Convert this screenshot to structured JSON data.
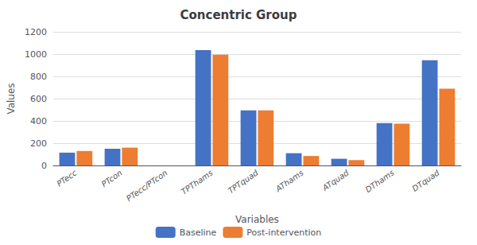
{
  "chart_data": {
    "type": "bar",
    "title": "Concentric Group",
    "xlabel": "Variables",
    "ylabel": "Values",
    "categories": [
      "PTecc",
      "PTcon",
      "PTecc/PTcon",
      "TPThams",
      "TPTquad",
      "AThams",
      "ATquad",
      "DThams",
      "DTquad"
    ],
    "series": [
      {
        "name": "Baseline",
        "color": "#4472C4",
        "values": [
          115,
          150,
          0,
          1035,
          495,
          110,
          60,
          380,
          945
        ]
      },
      {
        "name": "Post-intervention",
        "color": "#ED7D31",
        "values": [
          130,
          160,
          0,
          995,
          495,
          85,
          48,
          375,
          690
        ]
      }
    ],
    "ylim": [
      0,
      1200
    ],
    "yticks": [
      0,
      200,
      400,
      600,
      800,
      1000,
      1200
    ],
    "grid": true,
    "legend": "bottom"
  }
}
